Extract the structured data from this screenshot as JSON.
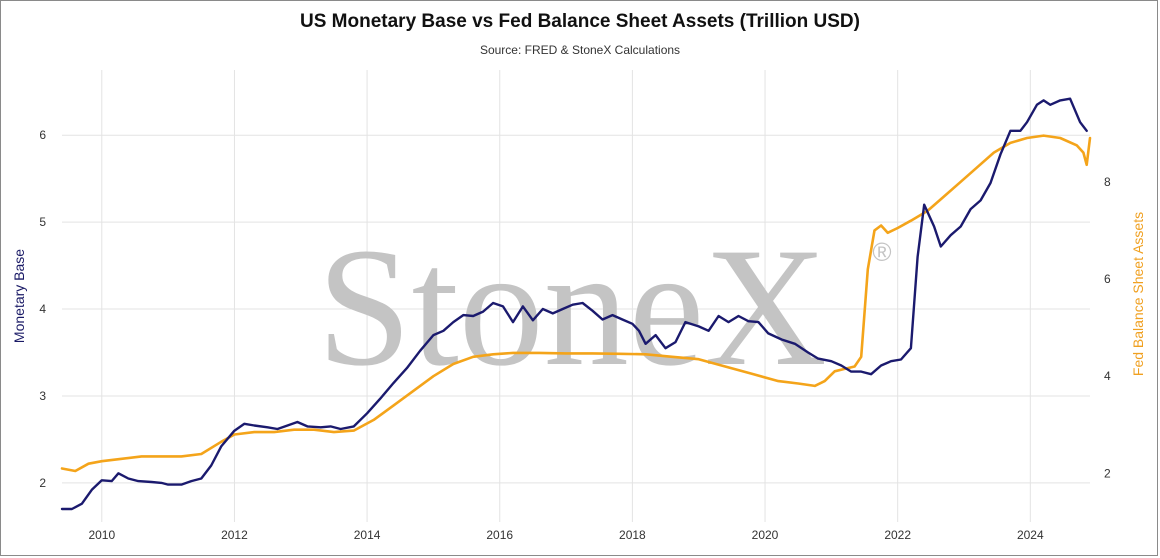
{
  "chart_data": {
    "type": "line",
    "title": "US Monetary Base vs Fed Balance Sheet Assets (Trillion USD)",
    "subtitle": "Source: FRED & StoneX Calculations",
    "watermark": "StoneX",
    "watermark_mark": "®",
    "xlabel": "",
    "ylabel_left": "Monetary Base",
    "ylabel_right": "Fed Balance Sheet Assets",
    "xlim": [
      2009.4,
      2024.9
    ],
    "ylim_left": [
      1.55,
      6.75
    ],
    "ylim_right": [
      1.0,
      10.3
    ],
    "x_ticks": [
      2010,
      2012,
      2014,
      2016,
      2018,
      2020,
      2022,
      2024
    ],
    "y_left_ticks": [
      2,
      3,
      4,
      5,
      6
    ],
    "y_right_ticks": [
      2,
      4,
      6,
      8
    ],
    "grid": true,
    "colors": {
      "monetary_base": "#1b1a6e",
      "balance_sheet": "#f4a41a",
      "grid": "#e3e3e3",
      "axis_text": "#333333"
    },
    "series": [
      {
        "name": "Monetary Base",
        "axis": "left",
        "color": "#1b1a6e",
        "points": [
          [
            2009.4,
            1.7
          ],
          [
            2009.55,
            1.7
          ],
          [
            2009.7,
            1.76
          ],
          [
            2009.85,
            1.92
          ],
          [
            2010.0,
            2.03
          ],
          [
            2010.15,
            2.02
          ],
          [
            2010.25,
            2.11
          ],
          [
            2010.4,
            2.05
          ],
          [
            2010.55,
            2.02
          ],
          [
            2010.75,
            2.01
          ],
          [
            2010.9,
            2.0
          ],
          [
            2011.0,
            1.98
          ],
          [
            2011.2,
            1.98
          ],
          [
            2011.35,
            2.02
          ],
          [
            2011.5,
            2.05
          ],
          [
            2011.65,
            2.2
          ],
          [
            2011.8,
            2.42
          ],
          [
            2012.0,
            2.6
          ],
          [
            2012.15,
            2.68
          ],
          [
            2012.3,
            2.66
          ],
          [
            2012.5,
            2.64
          ],
          [
            2012.65,
            2.62
          ],
          [
            2012.8,
            2.66
          ],
          [
            2012.95,
            2.7
          ],
          [
            2013.1,
            2.65
          ],
          [
            2013.3,
            2.64
          ],
          [
            2013.45,
            2.65
          ],
          [
            2013.6,
            2.62
          ],
          [
            2013.8,
            2.65
          ],
          [
            2014.0,
            2.8
          ],
          [
            2014.2,
            2.97
          ],
          [
            2014.4,
            3.15
          ],
          [
            2014.6,
            3.32
          ],
          [
            2014.8,
            3.52
          ],
          [
            2015.0,
            3.7
          ],
          [
            2015.15,
            3.75
          ],
          [
            2015.3,
            3.85
          ],
          [
            2015.45,
            3.93
          ],
          [
            2015.6,
            3.92
          ],
          [
            2015.75,
            3.97
          ],
          [
            2015.9,
            4.07
          ],
          [
            2016.05,
            4.03
          ],
          [
            2016.2,
            3.85
          ],
          [
            2016.35,
            4.03
          ],
          [
            2016.5,
            3.87
          ],
          [
            2016.65,
            4.0
          ],
          [
            2016.8,
            3.95
          ],
          [
            2016.95,
            4.0
          ],
          [
            2017.1,
            4.05
          ],
          [
            2017.25,
            4.07
          ],
          [
            2017.4,
            3.98
          ],
          [
            2017.55,
            3.88
          ],
          [
            2017.7,
            3.93
          ],
          [
            2017.85,
            3.88
          ],
          [
            2018.0,
            3.83
          ],
          [
            2018.1,
            3.75
          ],
          [
            2018.2,
            3.6
          ],
          [
            2018.35,
            3.7
          ],
          [
            2018.5,
            3.55
          ],
          [
            2018.65,
            3.62
          ],
          [
            2018.8,
            3.85
          ],
          [
            2019.0,
            3.8
          ],
          [
            2019.15,
            3.75
          ],
          [
            2019.3,
            3.92
          ],
          [
            2019.45,
            3.85
          ],
          [
            2019.6,
            3.92
          ],
          [
            2019.75,
            3.86
          ],
          [
            2019.9,
            3.85
          ],
          [
            2020.05,
            3.72
          ],
          [
            2020.25,
            3.65
          ],
          [
            2020.45,
            3.6
          ],
          [
            2020.65,
            3.5
          ],
          [
            2020.8,
            3.43
          ],
          [
            2021.0,
            3.4
          ],
          [
            2021.15,
            3.35
          ],
          [
            2021.3,
            3.28
          ],
          [
            2021.45,
            3.28
          ],
          [
            2021.6,
            3.25
          ],
          [
            2021.75,
            3.35
          ],
          [
            2021.9,
            3.4
          ],
          [
            2022.05,
            3.42
          ],
          [
            2022.2,
            3.55
          ],
          [
            2022.3,
            4.6
          ],
          [
            2022.4,
            5.2
          ],
          [
            2022.55,
            4.95
          ],
          [
            2022.65,
            4.72
          ],
          [
            2022.8,
            4.85
          ],
          [
            2022.95,
            4.95
          ],
          [
            2023.1,
            5.15
          ],
          [
            2023.25,
            5.25
          ],
          [
            2023.4,
            5.45
          ],
          [
            2023.55,
            5.78
          ],
          [
            2023.7,
            6.05
          ],
          [
            2023.85,
            6.05
          ],
          [
            2023.95,
            6.15
          ],
          [
            2024.1,
            6.35
          ],
          [
            2024.2,
            6.4
          ],
          [
            2024.3,
            6.35
          ],
          [
            2024.45,
            6.4
          ],
          [
            2024.6,
            6.42
          ],
          [
            2024.75,
            6.15
          ],
          [
            2024.85,
            6.05
          ]
        ]
      },
      {
        "name": "Fed Balance Sheet Assets",
        "axis": "right",
        "color": "#f4a41a",
        "points": [
          [
            2009.4,
            2.1
          ],
          [
            2009.6,
            2.05
          ],
          [
            2009.8,
            2.2
          ],
          [
            2010.0,
            2.25
          ],
          [
            2010.3,
            2.3
          ],
          [
            2010.6,
            2.35
          ],
          [
            2010.9,
            2.35
          ],
          [
            2011.2,
            2.35
          ],
          [
            2011.5,
            2.4
          ],
          [
            2011.8,
            2.65
          ],
          [
            2012.0,
            2.8
          ],
          [
            2012.3,
            2.85
          ],
          [
            2012.6,
            2.85
          ],
          [
            2012.9,
            2.9
          ],
          [
            2013.2,
            2.9
          ],
          [
            2013.5,
            2.85
          ],
          [
            2013.8,
            2.88
          ],
          [
            2014.1,
            3.1
          ],
          [
            2014.4,
            3.4
          ],
          [
            2014.7,
            3.7
          ],
          [
            2015.0,
            4.0
          ],
          [
            2015.3,
            4.25
          ],
          [
            2015.6,
            4.4
          ],
          [
            2015.9,
            4.45
          ],
          [
            2016.2,
            4.48
          ],
          [
            2016.6,
            4.48
          ],
          [
            2017.0,
            4.47
          ],
          [
            2017.4,
            4.47
          ],
          [
            2017.8,
            4.46
          ],
          [
            2018.2,
            4.45
          ],
          [
            2018.6,
            4.4
          ],
          [
            2019.0,
            4.35
          ],
          [
            2019.4,
            4.2
          ],
          [
            2019.8,
            4.05
          ],
          [
            2020.2,
            3.9
          ],
          [
            2020.5,
            3.85
          ],
          [
            2020.75,
            3.8
          ],
          [
            2020.9,
            3.9
          ],
          [
            2021.05,
            4.1
          ],
          [
            2021.2,
            4.15
          ],
          [
            2021.35,
            4.2
          ],
          [
            2021.45,
            4.4
          ],
          [
            2021.55,
            6.2
          ],
          [
            2021.65,
            7.0
          ],
          [
            2021.75,
            7.1
          ],
          [
            2021.85,
            6.95
          ],
          [
            2022.0,
            7.05
          ],
          [
            2022.2,
            7.2
          ],
          [
            2022.45,
            7.4
          ],
          [
            2022.7,
            7.7
          ],
          [
            2022.95,
            8.0
          ],
          [
            2023.2,
            8.3
          ],
          [
            2023.45,
            8.6
          ],
          [
            2023.7,
            8.8
          ],
          [
            2023.95,
            8.9
          ],
          [
            2024.2,
            8.95
          ],
          [
            2024.45,
            8.9
          ],
          [
            2024.7,
            8.75
          ],
          [
            2024.8,
            8.6
          ],
          [
            2024.85,
            8.35
          ],
          [
            2024.9,
            8.9
          ]
        ]
      }
    ]
  }
}
